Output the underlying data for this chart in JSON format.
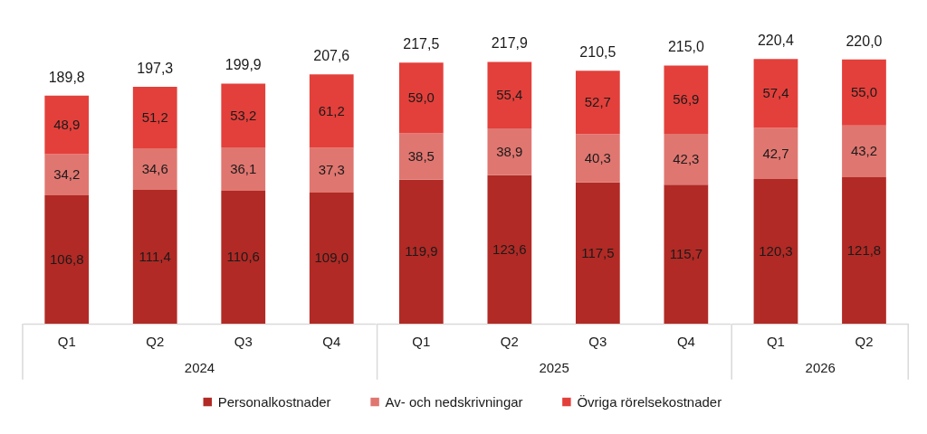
{
  "chart_data": [
    {
      "type": "bar",
      "stacked": true,
      "xlabel": "2024",
      "categories": [
        "Q1",
        "Q2",
        "Q3",
        "Q4"
      ],
      "series": [
        {
          "name": "Personalkostnader",
          "color": "#b12a25",
          "values": [
            106.8,
            111.4,
            110.6,
            109.0
          ],
          "value_labels": [
            "106,8",
            "111,4",
            "110,6",
            "109,0"
          ]
        },
        {
          "name": "Av- och nedskrivningar",
          "color": "#e07670",
          "values": [
            34.2,
            34.6,
            36.1,
            37.3
          ],
          "value_labels": [
            "34,2",
            "34,6",
            "36,1",
            "37,3"
          ]
        },
        {
          "name": "Övriga rörelsekostnader",
          "color": "#e3403b",
          "values": [
            48.9,
            51.2,
            53.2,
            61.2
          ],
          "value_labels": [
            "48,9",
            "51,2",
            "53,2",
            "61,2"
          ]
        }
      ],
      "totals": [
        "189,8",
        "197,3",
        "199,9",
        "207,6"
      ],
      "legend": "bottom",
      "tick_labels": "x",
      "grid": false
    },
    {
      "type": "bar",
      "stacked": true,
      "xlabel": "2025",
      "categories": [
        "Q1",
        "Q2",
        "Q3",
        "Q4"
      ],
      "series": [
        {
          "name": "Personalkostnader",
          "color": "#b12a25",
          "values": [
            119.9,
            123.6,
            117.5,
            115.7
          ],
          "value_labels": [
            "119,9",
            "123,6",
            "117,5",
            "115,7"
          ]
        },
        {
          "name": "Av- och nedskrivningar",
          "color": "#e07670",
          "values": [
            38.5,
            38.9,
            40.3,
            42.3
          ],
          "value_labels": [
            "38,5",
            "38,9",
            "40,3",
            "42,3"
          ]
        },
        {
          "name": "Övriga rörelsekostnader",
          "color": "#e3403b",
          "values": [
            59.0,
            55.4,
            52.7,
            56.9
          ],
          "value_labels": [
            "59,0",
            "55,4",
            "52,7",
            "56,9"
          ]
        }
      ],
      "totals": [
        "217,5",
        "217,9",
        "210,5",
        "215,0"
      ],
      "legend": "bottom",
      "tick_labels": "x",
      "grid": false
    },
    {
      "type": "bar",
      "stacked": true,
      "xlabel": "2026",
      "categories": [
        "Q1",
        "Q2"
      ],
      "series": [
        {
          "name": "Personalkostnader",
          "color": "#b12a25",
          "values": [
            120.3,
            121.8
          ],
          "value_labels": [
            "120,3",
            "121,8"
          ]
        },
        {
          "name": "Av- och nedskrivningar",
          "color": "#e07670",
          "values": [
            42.7,
            43.2
          ],
          "value_labels": [
            "42,7",
            "43,2"
          ]
        },
        {
          "name": "Övriga rörelsekostnader",
          "color": "#e3403b",
          "values": [
            57.4,
            55.0
          ],
          "value_labels": [
            "57,4",
            "55,0"
          ]
        }
      ],
      "totals": [
        "220,4",
        "220,0"
      ],
      "legend": "bottom",
      "tick_labels": "x",
      "grid": false
    }
  ]
}
